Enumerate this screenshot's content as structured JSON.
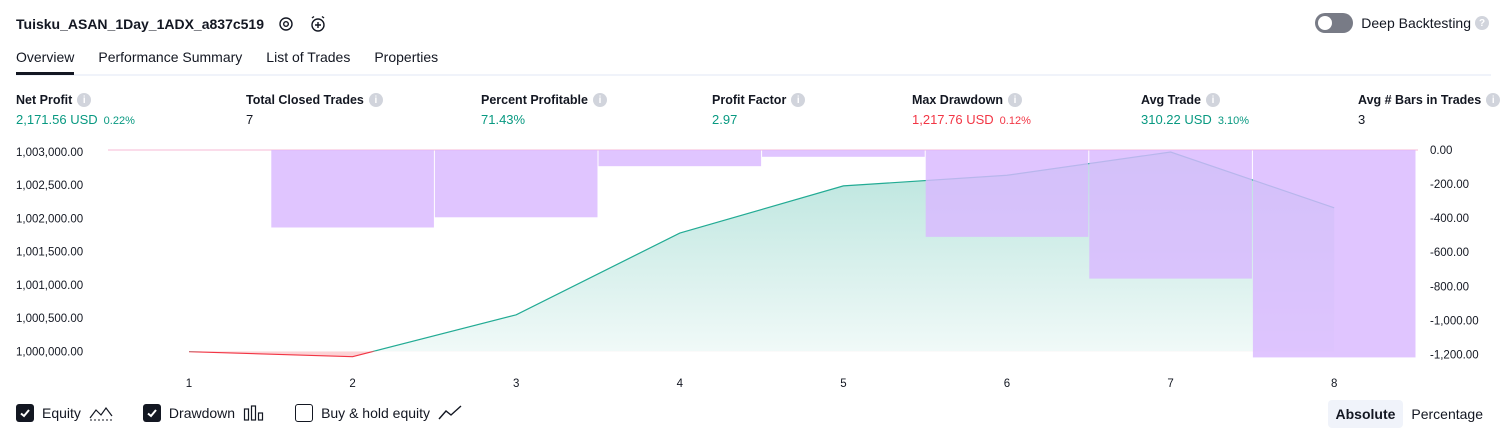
{
  "header": {
    "strategy_name": "Tuisku_ASAN_1Day_1ADX_a837c519",
    "settings_icon": "gear-icon",
    "alert_icon": "alarm-clock-plus-icon",
    "deep_backtesting_label": "Deep Backtesting",
    "deep_backtesting_enabled": false
  },
  "tabs": [
    {
      "label": "Overview",
      "active": true
    },
    {
      "label": "Performance Summary",
      "active": false
    },
    {
      "label": "List of Trades",
      "active": false
    },
    {
      "label": "Properties",
      "active": false
    }
  ],
  "metrics": [
    {
      "label": "Net Profit",
      "value": "2,171.56 USD",
      "pct": "0.22%",
      "tone": "pos"
    },
    {
      "label": "Total Closed Trades",
      "value": "7",
      "pct": "",
      "tone": "plain"
    },
    {
      "label": "Percent Profitable",
      "value": "71.43%",
      "pct": "",
      "tone": "pos"
    },
    {
      "label": "Profit Factor",
      "value": "2.97",
      "pct": "",
      "tone": "pos"
    },
    {
      "label": "Max Drawdown",
      "value": "1,217.76 USD",
      "pct": "0.12%",
      "tone": "neg"
    },
    {
      "label": "Avg Trade",
      "value": "310.22 USD",
      "pct": "3.10%",
      "tone": "pos"
    },
    {
      "label": "Avg # Bars in Trades",
      "value": "3",
      "pct": "",
      "tone": "plain"
    }
  ],
  "colors": {
    "equity_up": "#22ab94",
    "equity_down": "#f23645",
    "drawdown_bar": "#d9b8ff",
    "positive": "#089981",
    "negative": "#f23645"
  },
  "chart_data": {
    "type": "line",
    "x": [
      1,
      2,
      3,
      4,
      5,
      6,
      7,
      8
    ],
    "series": [
      {
        "values": [
          999995,
          999920,
          1000550,
          1001780,
          1002490,
          1002650,
          1003000,
          1002160
        ]
      }
    ],
    "bars": [
      {
        "trade": 2,
        "drawdown": -455
      },
      {
        "trade": 3,
        "drawdown": -395
      },
      {
        "trade": 4,
        "drawdown": -95
      },
      {
        "trade": 5,
        "drawdown": -40
      },
      {
        "trade": 6,
        "drawdown": -510
      },
      {
        "trade": 7,
        "drawdown": -755
      },
      {
        "trade": 8,
        "drawdown": -1217.76
      }
    ],
    "baseline": 1000000,
    "left_ylim": [
      999900,
      1003000
    ],
    "left_ticks": [
      "1,003,000.00",
      "1,002,500.00",
      "1,002,000.00",
      "1,001,500.00",
      "1,001,000.00",
      "1,000,500.00",
      "1,000,000.00"
    ],
    "right_ylim": [
      -1230,
      0
    ],
    "right_ticks": [
      "0.00",
      "-200.00",
      "-400.00",
      "-600.00",
      "-800.00",
      "-1,000.00",
      "-1,200.00"
    ],
    "x_ticks": [
      "1",
      "2",
      "3",
      "4",
      "5",
      "6",
      "7",
      "8"
    ]
  },
  "legend": {
    "items": [
      {
        "label": "Equity",
        "checked": true,
        "icon": "equity-line-icon"
      },
      {
        "label": "Drawdown",
        "checked": true,
        "icon": "drawdown-bars-icon"
      },
      {
        "label": "Buy & hold equity",
        "checked": false,
        "icon": "buy-hold-line-icon"
      }
    ]
  },
  "modes": {
    "absolute": "Absolute",
    "percentage": "Percentage",
    "active": "absolute"
  }
}
